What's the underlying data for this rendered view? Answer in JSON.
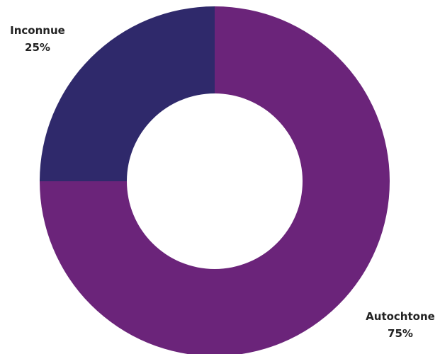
{
  "chart_data": {
    "type": "pie",
    "variant": "donut",
    "title": "",
    "categories": [
      "Autochtone",
      "Inconnue"
    ],
    "values": [
      75,
      25
    ],
    "value_labels": [
      "75%",
      "25%"
    ],
    "colors": [
      "#6b247a",
      "#2f296b"
    ],
    "start": "12 o'clock",
    "direction": "clockwise",
    "legend": "none"
  }
}
